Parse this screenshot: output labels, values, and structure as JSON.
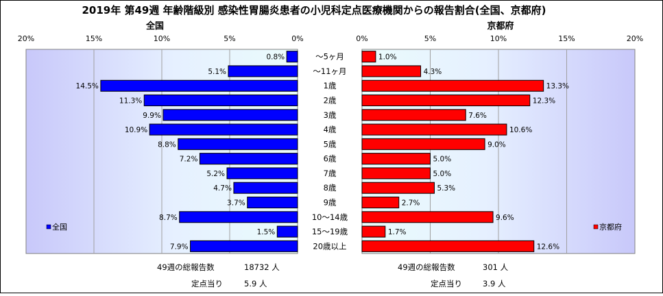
{
  "title": "2019年 第49週 年齢階級別 感染性胃腸炎患者の小児科定点医療機関からの報告割合(全国、京都府)",
  "left_panel": {
    "heading": "全国",
    "legend": "全国",
    "ticks": [
      "20%",
      "15%",
      "10%",
      "5%",
      "0%"
    ],
    "footer": [
      {
        "label": "49週の総報告数",
        "value": "18732 人"
      },
      {
        "label": "定点当り",
        "value": "5.9 人"
      }
    ]
  },
  "right_panel": {
    "heading": "京都府",
    "legend": "京都府",
    "ticks": [
      "0%",
      "5%",
      "10%",
      "15%",
      "20%"
    ],
    "footer": [
      {
        "label": "49週の総報告数",
        "value": "301 人"
      },
      {
        "label": "定点当り",
        "value": "3.9 人"
      }
    ]
  },
  "colors": {
    "national_bar": "#0000ff",
    "kyoto_bar": "#ff0000",
    "plot_bg": "#ccccff",
    "border": "#000000"
  },
  "chart_data": [
    {
      "type": "bar",
      "orientation": "horizontal",
      "direction": "right-to-left",
      "title": "全国",
      "categories": [
        "～5ヶ月",
        "～11ヶ月",
        "1歳",
        "2歳",
        "3歳",
        "4歳",
        "5歳",
        "6歳",
        "7歳",
        "8歳",
        "9歳",
        "10～14歳",
        "15～19歳",
        "20歳以上"
      ],
      "series": [
        {
          "name": "全国",
          "values": [
            0.8,
            5.1,
            14.5,
            11.3,
            9.9,
            10.9,
            8.8,
            7.2,
            5.2,
            4.7,
            3.7,
            8.7,
            1.5,
            7.9
          ],
          "labels": [
            "0.8%",
            "5.1%",
            "14.5%",
            "11.3%",
            "9.9%",
            "10.9%",
            "8.8%",
            "7.2%",
            "5.2%",
            "4.7%",
            "3.7%",
            "8.7%",
            "1.5%",
            "7.9%"
          ]
        }
      ],
      "xlim": [
        0,
        20
      ],
      "grid": true,
      "legend_position": "bottom-left"
    },
    {
      "type": "bar",
      "orientation": "horizontal",
      "direction": "left-to-right",
      "title": "京都府",
      "categories": [
        "～5ヶ月",
        "～11ヶ月",
        "1歳",
        "2歳",
        "3歳",
        "4歳",
        "5歳",
        "6歳",
        "7歳",
        "8歳",
        "9歳",
        "10～14歳",
        "15～19歳",
        "20歳以上"
      ],
      "series": [
        {
          "name": "京都府",
          "values": [
            1.0,
            4.3,
            13.3,
            12.3,
            7.6,
            10.6,
            9.0,
            5.0,
            5.0,
            5.3,
            2.7,
            9.6,
            1.7,
            12.6
          ],
          "labels": [
            "1.0%",
            "4.3%",
            "13.3%",
            "12.3%",
            "7.6%",
            "10.6%",
            "9.0%",
            "5.0%",
            "5.0%",
            "5.3%",
            "2.7%",
            "9.6%",
            "1.7%",
            "12.6%"
          ]
        }
      ],
      "xlim": [
        0,
        20
      ],
      "grid": true,
      "legend_position": "bottom-right"
    }
  ]
}
